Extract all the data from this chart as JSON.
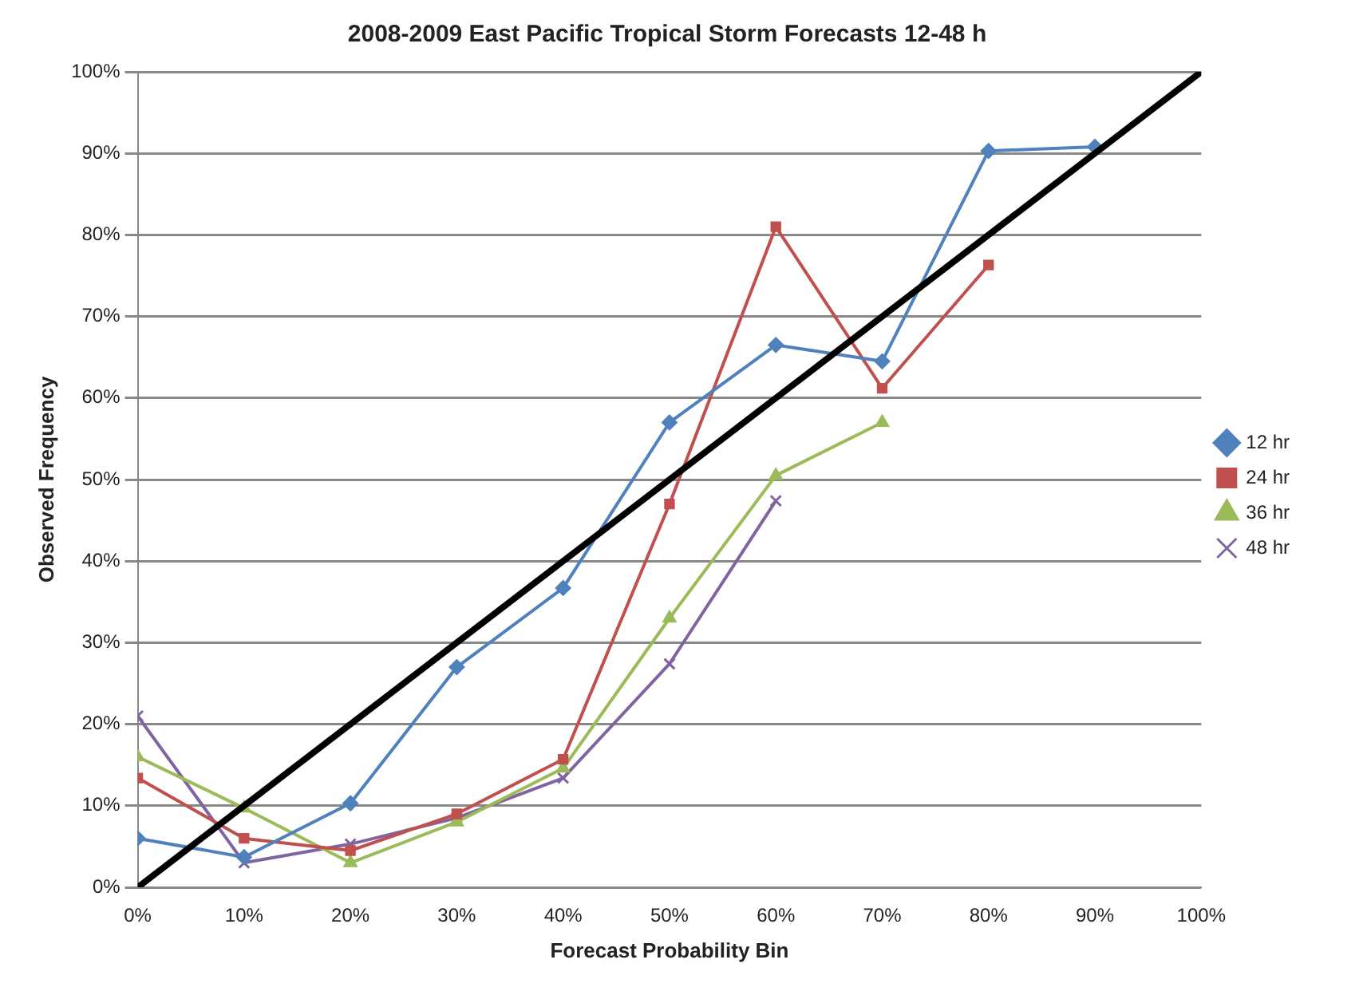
{
  "chart_data": {
    "type": "line",
    "title": "2008-2009 East Pacific Tropical Storm Forecasts 12-48 h",
    "xlabel": "Forecast Probability Bin",
    "ylabel": "Observed Frequency",
    "x": [
      0,
      10,
      20,
      30,
      40,
      50,
      60,
      70,
      80,
      90
    ],
    "series": [
      {
        "name": "12 hr",
        "color": "#4f81bd",
        "marker": "diamond",
        "values": [
          6,
          3.7,
          10.3,
          27,
          36.7,
          57,
          66.5,
          64.5,
          90.3,
          90.8
        ]
      },
      {
        "name": "24 hr",
        "color": "#c0504d",
        "marker": "square",
        "values": [
          13.4,
          6,
          4.5,
          9,
          15.7,
          47,
          81,
          61.2,
          76.3,
          null
        ]
      },
      {
        "name": "36 hr",
        "color": "#9bbb59",
        "marker": "triangle",
        "values": [
          16,
          9.7,
          3,
          8,
          14.6,
          33,
          50.5,
          57,
          null,
          null
        ]
      },
      {
        "name": "48 hr",
        "color": "#8064a2",
        "marker": "cross",
        "values": [
          21,
          3,
          5.3,
          8.5,
          13.4,
          27.4,
          47.4,
          null,
          null,
          null
        ]
      },
      {
        "type": "line",
        "color": "#000000",
        "marker": "none",
        "x": [
          0,
          100
        ],
        "values": [
          0,
          100
        ]
      }
    ],
    "xlim": [
      0,
      100
    ],
    "ylim": [
      0,
      100
    ],
    "xticks": [
      {
        "value": 0,
        "label": "0%"
      },
      {
        "value": 10,
        "label": "10%"
      },
      {
        "value": 20,
        "label": "20%"
      },
      {
        "value": 30,
        "label": "30%"
      },
      {
        "value": 40,
        "label": "40%"
      },
      {
        "value": 50,
        "label": "50%"
      },
      {
        "value": 60,
        "label": "60%"
      },
      {
        "value": 70,
        "label": "70%"
      },
      {
        "value": 80,
        "label": "80%"
      },
      {
        "value": 90,
        "label": "90%"
      },
      {
        "value": 100,
        "label": "100%"
      }
    ],
    "yticks": [
      {
        "value": 0,
        "label": "0%"
      },
      {
        "value": 10,
        "label": "10%"
      },
      {
        "value": 20,
        "label": "20%"
      },
      {
        "value": 30,
        "label": "30%"
      },
      {
        "value": 40,
        "label": "40%"
      },
      {
        "value": 50,
        "label": "50%"
      },
      {
        "value": 60,
        "label": "60%"
      },
      {
        "value": 70,
        "label": "70%"
      },
      {
        "value": 80,
        "label": "80%"
      },
      {
        "value": 90,
        "label": "90%"
      },
      {
        "value": 100,
        "label": "100%"
      }
    ],
    "grid": "y",
    "legend": "right"
  }
}
